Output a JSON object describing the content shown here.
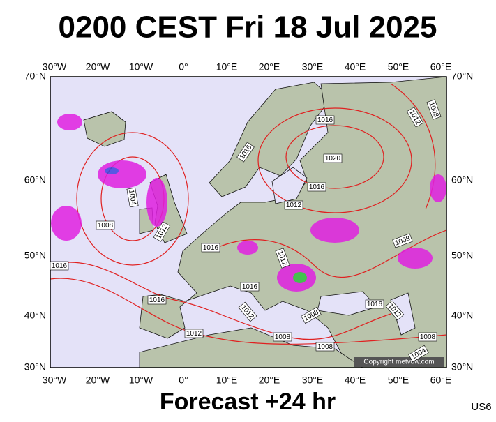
{
  "header": {
    "title": "0200 CEST Fri 18 Jul 2025"
  },
  "map": {
    "lon_labels": [
      "30°W",
      "20°W",
      "10°W",
      "0°",
      "10°E",
      "20°E",
      "30°E",
      "40°E",
      "50°E",
      "60°E"
    ],
    "lat_labels": [
      "70°N",
      "60°N",
      "50°N",
      "40°N",
      "30°N"
    ],
    "isobar_labels": [
      1016,
      1008,
      1012,
      1016,
      1020,
      1016,
      1004,
      1012,
      1008,
      1012,
      1016,
      1008,
      1012,
      1016,
      1016,
      1016,
      1012,
      1016,
      1012,
      1008,
      1012,
      1008,
      1008,
      1008,
      1004
    ],
    "copyright": "Copyright metvuw.com"
  },
  "footer": {
    "forecast": "Forecast +24 hr",
    "code": "US6"
  }
}
